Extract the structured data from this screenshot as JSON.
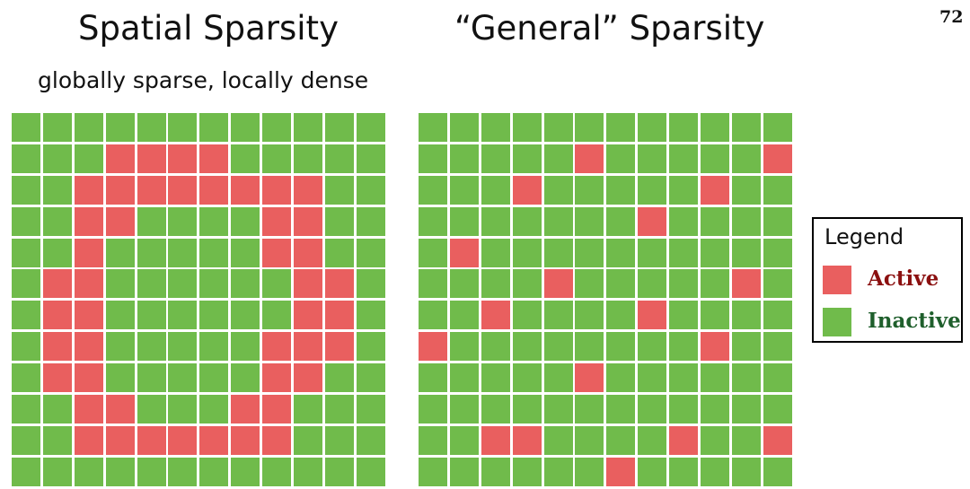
{
  "slide": {
    "page_number": "72",
    "left_title": "Spatial Sparsity",
    "left_subtitle": "globally sparse, locally dense",
    "right_title": "“General” Sparsity"
  },
  "colors": {
    "active": "#e95f5f",
    "inactive": "#70bb4b",
    "active_text": "#8b1010",
    "inactive_text": "#1f5f2c"
  },
  "legend": {
    "title": "Legend",
    "active_label": "Active",
    "inactive_label": "Inactive"
  },
  "grids": {
    "spatial": [
      "000000000000",
      "000111100000",
      "001111111100",
      "001100001100",
      "001000001100",
      "011000000110",
      "011000000110",
      "011000001110",
      "011000001100",
      "001100011000",
      "001111111000",
      "000000000000"
    ],
    "general": [
      "000000000000",
      "000001000001",
      "000100000100",
      "000000010000",
      "010000000000",
      "000010000010",
      "001000010000",
      "100000000100",
      "000001000000",
      "000000000000",
      "001100001001",
      "000000100000"
    ]
  }
}
